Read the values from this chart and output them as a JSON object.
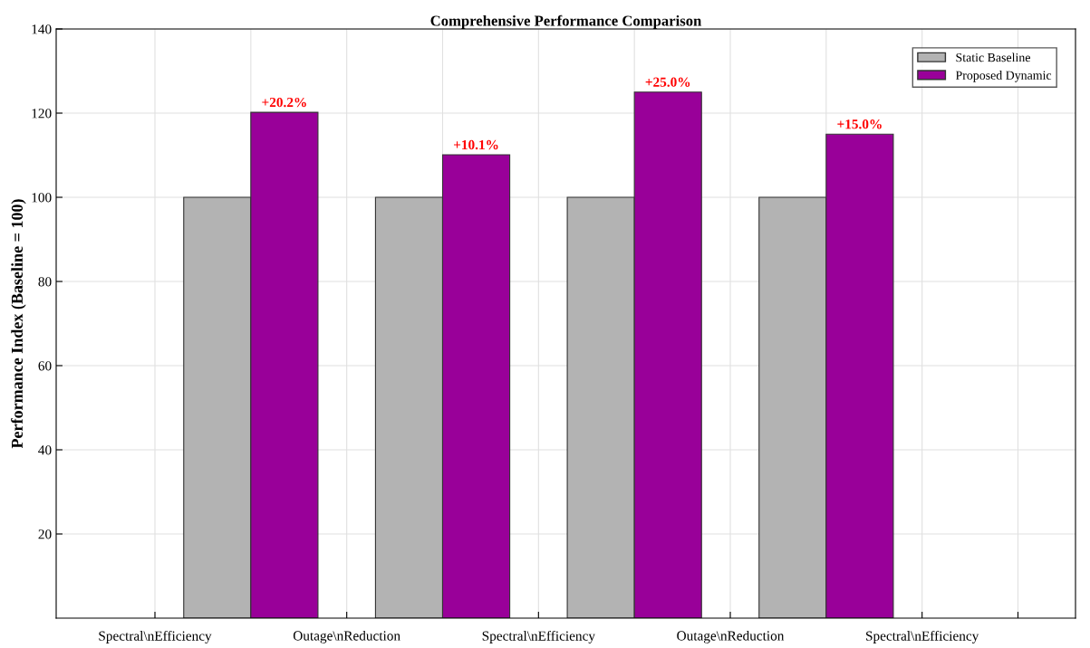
{
  "chart_data": {
    "type": "bar",
    "title": "Comprehensive Performance Comparison",
    "ylabel": "Performance Index (Baseline = 100)",
    "categories": [
      "Spectral\\nEfficiency",
      null,
      "Outage\\nReduction",
      null,
      "Spectral\\nEfficiency",
      null,
      "Outage\\nReduction",
      null,
      "Spectral\\nEfficiency",
      null
    ],
    "series": [
      {
        "name": "Static Baseline",
        "color": "#b3b3b3",
        "values": [
          null,
          100,
          null,
          100,
          null,
          100,
          null,
          100,
          null,
          null
        ]
      },
      {
        "name": "Proposed Dynamic",
        "color": "#990099",
        "values": [
          null,
          120.2,
          null,
          110.1,
          null,
          125,
          null,
          115,
          null,
          null
        ]
      }
    ],
    "annotations": [
      {
        "text": "+20.2%",
        "y": 120.2
      },
      {
        "text": "+10.1%",
        "y": 110.1
      },
      {
        "text": "+25.0%",
        "y": 125
      },
      {
        "text": "+15.0%",
        "y": 115
      }
    ],
    "ylim": [
      0,
      140
    ],
    "yticks": [
      20,
      40,
      60,
      80,
      100,
      120,
      140
    ],
    "grid": true,
    "legend": "top right"
  }
}
